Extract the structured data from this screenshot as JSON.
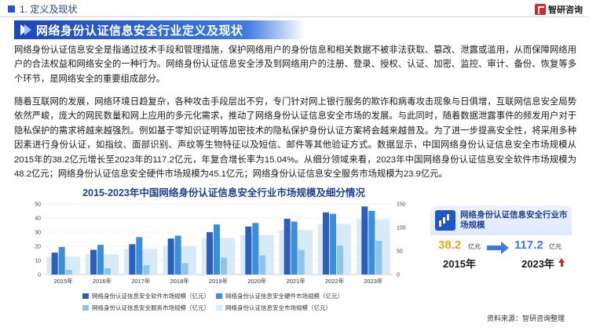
{
  "header": {
    "section_title": "1. 定义及现状",
    "logo_text": "智研咨询"
  },
  "title": "网络身份认证信息安全行业定义及现状",
  "paragraph1": "网络身份认证信息安全是指通过技术手段和管理措施，保护网络用户的身份信息和相关数据不被非法获取、篡改、泄露或滥用，从而保障网络用户的合法权益和网络安全的一种行为。网络身份认证信息安全涉及到网络用户的注册、登录、授权、认证、加密、监控、审计、备份、恢复等多个环节，是网络安全的重要组成部分。",
  "paragraph2": "随着互联网的发展，网络环境日趋复杂，各种攻击手段层出不穷，专门针对网上银行服务的欺诈和病毒攻击现象与日俱增，互联网信息安全局势依然严峻，庞大的网民数量和网上应用的多元化需求，推动了网络身份认证信息安全市场的发展。与此同时，随着数据泄露事件的频发用户对于隐私保护的需求将越来越强烈。例如基于零知识证明等加密技术的隐私保护身份认证方案将会越来越普及。为了进一步提高安全性，将采用多种因素进行身份认证，如指纹、面部识别、声纹等生物特征以及短信、邮件等其他验证方式。数据显示，中国网络身份认证信息安全市场规模从2015年的38.2亿元增长至2023年的117.2亿元，年复合增长率为15.04%。从细分领域来看，2023年中国网络身份认证信息安全软件市场规模为48.2亿元；网络身份认证信息安全硬件市场规模为45.1亿元；网络身份认证信息安全服务市场规模为23.9亿元。",
  "chart_data": {
    "type": "bar",
    "title": "2015-2023年中国网络身份认证信息安全行业市场规模及细分情况",
    "categories": [
      "2015年",
      "2016年",
      "2017年",
      "2018年",
      "2019年",
      "2020年",
      "2021年",
      "2022年",
      "2023年"
    ],
    "ylim_left": [
      0,
      50
    ],
    "ylim_right": [
      0,
      150
    ],
    "yticks_left": [
      "0",
      "10",
      "20",
      "30",
      "40",
      "50"
    ],
    "yticks_right": [
      "0",
      "50",
      "100",
      "150"
    ],
    "series": [
      {
        "name": "网络身份认证信息安全软件市场规模（亿元）",
        "axis": "left",
        "color": "#2e5fb8",
        "values": [
          15.5,
          17.5,
          21.5,
          25.5,
          30.0,
          34.0,
          39.5,
          44.0,
          48.2
        ]
      },
      {
        "name": "网络身份认证信息安全硬件市场规模（亿元）",
        "axis": "left",
        "color": "#3a8fd8",
        "values": [
          19.5,
          21.0,
          26.5,
          27.5,
          35.5,
          36.5,
          37.5,
          43.0,
          45.1
        ]
      },
      {
        "name": "网络身份认证信息安全服务市场规模（亿元）",
        "axis": "left",
        "color": "#8cc4ec",
        "values": [
          3.2,
          4.5,
          6.5,
          8.0,
          12.0,
          13.5,
          17.5,
          20.5,
          23.9
        ]
      },
      {
        "name": "网络身份认证信息安全市场规模（亿元）",
        "axis": "right",
        "color": "#d8e9f7",
        "values": [
          38.2,
          43.0,
          54.5,
          61.0,
          77.5,
          84.0,
          94.5,
          107.5,
          117.2
        ]
      }
    ]
  },
  "panel": {
    "title": "网络身份认证信息安全行业市场规模",
    "value_start": "38.2",
    "unit_start": "亿元",
    "year_start": "2015年",
    "value_end": "117.2",
    "unit_end": "亿元",
    "year_end": "2023年"
  },
  "source": "资料来源：智研咨询整理",
  "colors": {
    "brand": "#1f56c9",
    "accent_red": "#d8262b",
    "accent_gold": "#e8a81a"
  }
}
